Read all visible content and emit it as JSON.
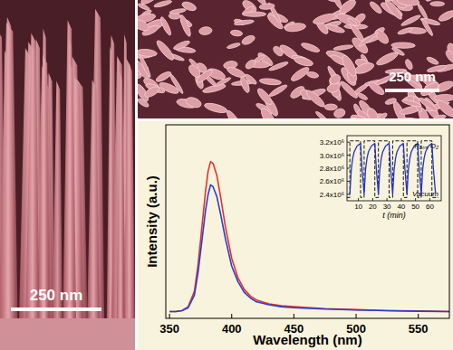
{
  "chart_data": [
    {
      "type": "line",
      "x_label": "Wavelength (nm)",
      "y_label": "Intensity (a.u.)",
      "x": [
        350,
        355,
        360,
        365,
        370,
        373,
        376,
        379,
        381,
        383,
        385,
        388,
        391,
        395,
        400,
        405,
        410,
        415,
        420,
        430,
        440,
        450,
        475,
        500,
        525,
        550,
        575
      ],
      "series": [
        {
          "color": "#e8302c",
          "line_style": "solid",
          "values": [
            0.035,
            0.035,
            0.04,
            0.06,
            0.14,
            0.28,
            0.47,
            0.66,
            0.76,
            0.81,
            0.8,
            0.74,
            0.63,
            0.47,
            0.31,
            0.21,
            0.15,
            0.115,
            0.095,
            0.075,
            0.065,
            0.06,
            0.05,
            0.045,
            0.04,
            0.038,
            0.035
          ]
        },
        {
          "color": "#2a3dd6",
          "line_style": "solid",
          "values": [
            0.035,
            0.035,
            0.04,
            0.055,
            0.12,
            0.24,
            0.4,
            0.56,
            0.64,
            0.69,
            0.68,
            0.63,
            0.54,
            0.41,
            0.27,
            0.19,
            0.135,
            0.105,
            0.085,
            0.07,
            0.06,
            0.055,
            0.048,
            0.043,
            0.04,
            0.037,
            0.035
          ]
        }
      ],
      "xlim": [
        347,
        575
      ],
      "xticks": [
        350,
        400,
        450,
        500,
        550
      ],
      "ylim": [
        0,
        1
      ],
      "tick_labels": "x",
      "grid": false
    },
    {
      "type": "line",
      "x_label": "t (min)",
      "annotations": [
        "Pₐₜₘ O₂",
        "Vacuum"
      ],
      "series": [
        {
          "color": "#000000",
          "line_style": "dashed",
          "x": [
            2,
            4,
            4,
            11.5,
            11.5,
            14,
            14,
            21.5,
            21.5,
            24,
            24,
            31.5,
            31.5,
            34,
            34,
            41.5,
            41.5,
            44,
            44,
            51.5,
            51.5,
            54,
            54,
            61.5,
            61.5,
            66
          ],
          "values": [
            2350000,
            2350000,
            3220000,
            3220000,
            2350000,
            2350000,
            3220000,
            3220000,
            2350000,
            2350000,
            3220000,
            3220000,
            2350000,
            2350000,
            3220000,
            3220000,
            2350000,
            2350000,
            3220000,
            3220000,
            2350000,
            2350000,
            3220000,
            3220000,
            2350000,
            2350000
          ]
        },
        {
          "color": "#2233cc",
          "line_style": "solid",
          "x": [
            4,
            5,
            6,
            7,
            9,
            11.5,
            12.5,
            14,
            15,
            16,
            17,
            19,
            21.5,
            22.5,
            24,
            25,
            26,
            27,
            29,
            31.5,
            32.5,
            34,
            35,
            36,
            37,
            39,
            41.5,
            42.5,
            44,
            45,
            46,
            47,
            49,
            51.5,
            52.5,
            54,
            55,
            56,
            57,
            59,
            61.5,
            62.5,
            64
          ],
          "values": [
            2400000,
            2780000,
            2950000,
            3050000,
            3140000,
            3180000,
            2800000,
            2400000,
            2780000,
            2950000,
            3050000,
            3140000,
            3180000,
            2800000,
            2400000,
            2780000,
            2950000,
            3050000,
            3140000,
            3180000,
            2800000,
            2400000,
            2780000,
            2950000,
            3050000,
            3140000,
            3180000,
            2800000,
            2400000,
            2780000,
            2950000,
            3050000,
            3140000,
            3180000,
            2800000,
            2400000,
            2780000,
            2950000,
            3050000,
            3140000,
            3180000,
            2800000,
            2420000
          ]
        }
      ],
      "xlim": [
        2,
        68
      ],
      "xticks": [
        10,
        20,
        30,
        40,
        50,
        60
      ],
      "ylim": [
        2300000,
        3300000
      ],
      "yticks": [
        {
          "value": 2400000,
          "label": "2.4x10⁶"
        },
        {
          "value": 2600000,
          "label": "2.6x10⁶"
        },
        {
          "value": 2800000,
          "label": "2.8x10⁶"
        },
        {
          "value": 3000000,
          "label": "3.0x10⁶"
        },
        {
          "value": 3200000,
          "label": "3.2x10⁶"
        }
      ],
      "grid": false
    }
  ],
  "images": [
    {
      "scale_bar": "250 nm"
    },
    {
      "scale_bar": "250 nm"
    }
  ]
}
